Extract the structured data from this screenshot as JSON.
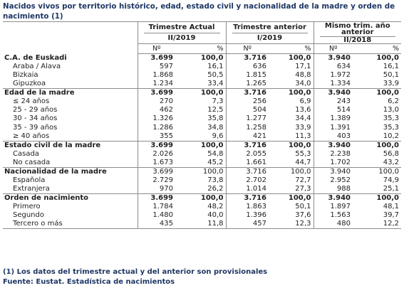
{
  "title": "Nacidos vivos por territorio histórico, edad, estado civil y nacionalidad de la madre y orden de nacimiento (1)",
  "header": {
    "periods": [
      {
        "label_lines": [
          "Trimestre Actual",
          "II/2019"
        ]
      },
      {
        "label_lines": [
          "Trimestre anterior",
          "I/2019"
        ]
      },
      {
        "label_lines": [
          "Mismo trim. año",
          "anterior",
          "II/2018"
        ]
      }
    ],
    "col_num": "Nº",
    "col_pct": "%"
  },
  "sections": [
    {
      "label": "C.A. de Euskadi",
      "values": [
        "3.699",
        "100,0",
        "3.716",
        "100,0",
        "3.940",
        "100,0"
      ],
      "rows": [
        {
          "label": "Araba / Álava",
          "values": [
            "597",
            "16,1",
            "636",
            "17,1",
            "634",
            "16,1"
          ]
        },
        {
          "label": "Bizkaia",
          "values": [
            "1.868",
            "50,5",
            "1.815",
            "48,8",
            "1.972",
            "50,1"
          ]
        },
        {
          "label": "Gipuzkoa",
          "values": [
            "1.234",
            "33,4",
            "1.265",
            "34,0",
            "1.334",
            "33,9"
          ]
        }
      ]
    },
    {
      "label": "Edad de la madre",
      "values": [
        "3.699",
        "100,0",
        "3.716",
        "100,0",
        "3.940",
        "100,0"
      ],
      "rows": [
        {
          "label": "≤ 24 años",
          "values": [
            "270",
            "7,3",
            "256",
            "6,9",
            "243",
            "6,2"
          ]
        },
        {
          "label": "25 - 29 años",
          "values": [
            "462",
            "12,5",
            "504",
            "13,6",
            "514",
            "13,0"
          ]
        },
        {
          "label": "30 - 34 años",
          "values": [
            "1.326",
            "35,8",
            "1.277",
            "34,4",
            "1.389",
            "35,3"
          ]
        },
        {
          "label": "35 - 39 años",
          "values": [
            "1.286",
            "34,8",
            "1.258",
            "33,9",
            "1.391",
            "35,3"
          ]
        },
        {
          "label": "≥ 40 años",
          "values": [
            "355",
            "9,6",
            "421",
            "11,3",
            "403",
            "10,2"
          ]
        }
      ]
    },
    {
      "label": "Estado civil de la madre",
      "values": [
        "3.699",
        "100,0",
        "3.716",
        "100,0",
        "3.940",
        "100,0"
      ],
      "rows": [
        {
          "label": "Casada",
          "values": [
            "2.026",
            "54,8",
            "2.055",
            "55,3",
            "2.238",
            "56,8"
          ]
        },
        {
          "label": "No casada",
          "values": [
            "1.673",
            "45,2",
            "1.661",
            "44,7",
            "1.702",
            "43,2"
          ]
        }
      ]
    },
    {
      "label": "Nacionalidad de la madre",
      "values": [
        "3.699",
        "100,0",
        "3.716",
        "100,0",
        "3.940",
        "100,0"
      ],
      "values_bold": false,
      "rows": [
        {
          "label": "Española",
          "values": [
            "2.729",
            "73,8",
            "2.702",
            "72,7",
            "2.952",
            "74,9"
          ]
        },
        {
          "label": "Extranjera",
          "values": [
            "970",
            "26,2",
            "1.014",
            "27,3",
            "988",
            "25,1"
          ]
        }
      ]
    },
    {
      "label": "Orden de nacimiento",
      "values": [
        "3.699",
        "100,0",
        "3.716",
        "100,0",
        "3.940",
        "100,0"
      ],
      "rows": [
        {
          "label": "Primero",
          "values": [
            "1.784",
            "48,2",
            "1.863",
            "50,1",
            "1.897",
            "48,1"
          ]
        },
        {
          "label": "Segundo",
          "values": [
            "1.480",
            "40,0",
            "1.396",
            "37,6",
            "1.563",
            "39,7"
          ]
        },
        {
          "label": "Tercero o más",
          "values": [
            "435",
            "11,8",
            "457",
            "12,3",
            "480",
            "12,2"
          ]
        }
      ]
    }
  ],
  "footnotes": [
    "(1) Los datos del trimestre actual y del anterior son provisionales",
    "Fuente: Eustat. Estadística de nacimientos"
  ]
}
